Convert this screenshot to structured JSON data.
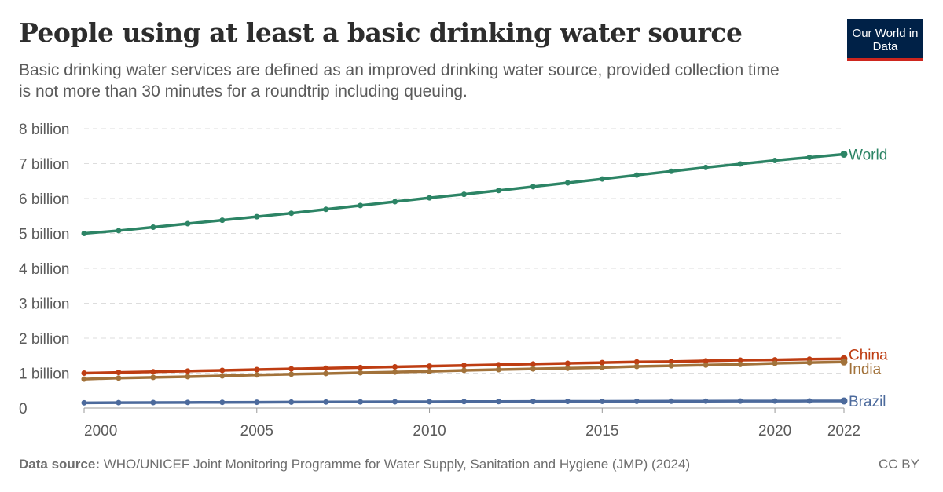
{
  "header": {
    "title": "People using at least a basic drinking water source",
    "subtitle": "Basic drinking water services are defined as an improved drinking water source, provided collection time is not more than 30 minutes for a roundtrip including queuing.",
    "logo": "Our World in Data"
  },
  "footer": {
    "source_label": "Data source:",
    "source": "WHO/UNICEF Joint Monitoring Programme for Water Supply, Sanitation and Hygiene (JMP) (2024)",
    "license": "CC BY"
  },
  "chart_data": {
    "type": "line",
    "title": "People using at least a basic drinking water source",
    "xlabel": "",
    "ylabel": "",
    "x": [
      2000,
      2001,
      2002,
      2003,
      2004,
      2005,
      2006,
      2007,
      2008,
      2009,
      2010,
      2011,
      2012,
      2013,
      2014,
      2015,
      2016,
      2017,
      2018,
      2019,
      2020,
      2021,
      2022
    ],
    "xlim": [
      2000,
      2022
    ],
    "ylim": [
      0,
      8
    ],
    "xticks": [
      2000,
      2005,
      2010,
      2015,
      2020,
      2022
    ],
    "yticks": [
      {
        "v": 0,
        "label": "0"
      },
      {
        "v": 1,
        "label": "1 billion"
      },
      {
        "v": 2,
        "label": "2 billion"
      },
      {
        "v": 3,
        "label": "3 billion"
      },
      {
        "v": 4,
        "label": "4 billion"
      },
      {
        "v": 5,
        "label": "5 billion"
      },
      {
        "v": 6,
        "label": "6 billion"
      },
      {
        "v": 7,
        "label": "7 billion"
      },
      {
        "v": 8,
        "label": "8 billion"
      }
    ],
    "unit": "billion",
    "grid": "horizontal dashed",
    "legend": "inline-right",
    "series": [
      {
        "name": "World",
        "color": "#2c8465",
        "values": [
          5.0,
          5.08,
          5.18,
          5.28,
          5.38,
          5.48,
          5.58,
          5.69,
          5.8,
          5.91,
          6.02,
          6.12,
          6.23,
          6.34,
          6.45,
          6.56,
          6.67,
          6.78,
          6.89,
          6.99,
          7.09,
          7.18,
          7.27
        ]
      },
      {
        "name": "China",
        "color": "#be3d12",
        "values": [
          1.0,
          1.02,
          1.04,
          1.06,
          1.08,
          1.1,
          1.12,
          1.14,
          1.16,
          1.18,
          1.2,
          1.22,
          1.24,
          1.26,
          1.28,
          1.3,
          1.32,
          1.33,
          1.35,
          1.37,
          1.38,
          1.4,
          1.41
        ]
      },
      {
        "name": "India",
        "color": "#a2723a",
        "values": [
          0.83,
          0.86,
          0.88,
          0.9,
          0.92,
          0.95,
          0.97,
          0.99,
          1.01,
          1.03,
          1.05,
          1.08,
          1.1,
          1.12,
          1.14,
          1.16,
          1.19,
          1.21,
          1.23,
          1.25,
          1.28,
          1.3,
          1.32
        ]
      },
      {
        "name": "Brazil",
        "color": "#4c6a9c",
        "values": [
          0.15,
          0.155,
          0.158,
          0.161,
          0.164,
          0.167,
          0.17,
          0.173,
          0.176,
          0.179,
          0.181,
          0.184,
          0.186,
          0.188,
          0.19,
          0.192,
          0.194,
          0.196,
          0.198,
          0.199,
          0.2,
          0.201,
          0.203
        ]
      }
    ]
  }
}
